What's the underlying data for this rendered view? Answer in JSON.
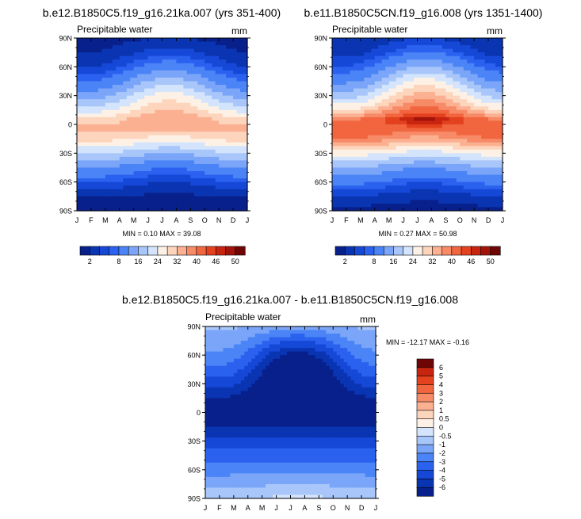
{
  "palette_abs": [
    "#08208b",
    "#0a35b2",
    "#1648d8",
    "#2a62ef",
    "#4a84f6",
    "#7aa5f8",
    "#a8c6fa",
    "#d3e4fc",
    "#fdf1e6",
    "#fdd4bc",
    "#fbb091",
    "#f78a67",
    "#f1653f",
    "#e4421f",
    "#c82511",
    "#a2140a",
    "#6e0605"
  ],
  "palette_diff": [
    "#08208b",
    "#0a35b2",
    "#1648d8",
    "#2a62ef",
    "#4a84f6",
    "#7aa5f8",
    "#a8c6fa",
    "#d3e4fc",
    "#fdf1e6",
    "#fdd4bc",
    "#fbb091",
    "#f78a67",
    "#f1653f",
    "#e4421f",
    "#c82511",
    "#6e0605"
  ],
  "chart_data": [
    {
      "type": "heatmap",
      "title": "b.e12.B1850C5.f19_g16.21ka.007 (yrs 351-400)",
      "left_label": "Precipitable water",
      "right_label": "mm",
      "x_ticks": [
        "J",
        "F",
        "M",
        "A",
        "M",
        "J",
        "J",
        "A",
        "S",
        "O",
        "N",
        "D",
        "J"
      ],
      "y_ticks": [
        "90N",
        "60N",
        "30N",
        "0",
        "30S",
        "60S",
        "90S"
      ],
      "stats": "MIN =   0.10 MAX =  39.08",
      "min": 0.1,
      "max": 39.08,
      "colorbar_labels": [
        "2",
        "8",
        "16",
        "24",
        "32",
        "40",
        "46",
        "50"
      ],
      "field": {
        "lat": [
          90,
          75,
          60,
          45,
          30,
          15,
          5,
          -5,
          -15,
          -30,
          -45,
          -60,
          -75,
          -90
        ],
        "jan": [
          1,
          2,
          4,
          8,
          14,
          22,
          30,
          33,
          30,
          20,
          12,
          6,
          2,
          0.5
        ],
        "jul": [
          2,
          5,
          10,
          18,
          26,
          32,
          36,
          33,
          26,
          16,
          8,
          4,
          1.5,
          0.5
        ]
      }
    },
    {
      "type": "heatmap",
      "title": "b.e11.B1850C5CN.f19_g16.008 (yrs 1351-1400)",
      "left_label": "Precipitable water",
      "right_label": "mm",
      "x_ticks": [
        "J",
        "F",
        "M",
        "A",
        "M",
        "J",
        "J",
        "A",
        "S",
        "O",
        "N",
        "D",
        "J"
      ],
      "y_ticks": [
        "90N",
        "60N",
        "30N",
        "0",
        "30S",
        "60S",
        "90S"
      ],
      "stats": "MIN =   0.27 MAX =  50.98",
      "min": 0.27,
      "max": 50.98,
      "colorbar_labels": [
        "2",
        "8",
        "16",
        "24",
        "32",
        "40",
        "46",
        "50"
      ],
      "field": {
        "lat": [
          90,
          75,
          60,
          45,
          30,
          15,
          5,
          -5,
          -15,
          -30,
          -45,
          -60,
          -75,
          -90
        ],
        "jan": [
          2,
          3,
          6,
          11,
          18,
          28,
          40,
          44,
          40,
          26,
          16,
          9,
          4,
          1
        ],
        "jul": [
          4,
          8,
          16,
          26,
          34,
          42,
          49,
          42,
          34,
          22,
          12,
          6,
          2.5,
          1
        ]
      }
    },
    {
      "type": "heatmap",
      "title": "b.e12.B1850C5.f19_g16.21ka.007 - b.e11.B1850C5CN.f19_g16.008",
      "left_label": "Precipitable water",
      "right_label": "mm",
      "x_ticks": [
        "J",
        "F",
        "M",
        "A",
        "M",
        "J",
        "J",
        "A",
        "S",
        "O",
        "N",
        "D",
        "J"
      ],
      "y_ticks": [
        "90N",
        "60N",
        "30N",
        "0",
        "30S",
        "60S",
        "90S"
      ],
      "stats": "MIN = -12.17 MAX =  -0.16",
      "min": -12.17,
      "max": -0.16,
      "colorbar_labels": [
        "6",
        "5",
        "4",
        "3",
        "2",
        "1",
        "0.5",
        "0",
        "-0.5",
        "-1",
        "-2",
        "-3",
        "-4",
        "-5",
        "-6"
      ],
      "field": {
        "lat": [
          90,
          75,
          60,
          45,
          30,
          15,
          5,
          -5,
          -15,
          -30,
          -45,
          -60,
          -75,
          -90
        ],
        "jan": [
          -0.8,
          -1.5,
          -2.2,
          -3.2,
          -4.5,
          -6,
          -7.5,
          -7,
          -6,
          -4.5,
          -3.5,
          -2.5,
          -1.2,
          -0.5
        ],
        "jul": [
          -1.5,
          -4,
          -6.5,
          -8,
          -8.5,
          -9,
          -9,
          -8,
          -6,
          -4.5,
          -3.5,
          -2.2,
          -1,
          -0.4
        ]
      }
    }
  ]
}
